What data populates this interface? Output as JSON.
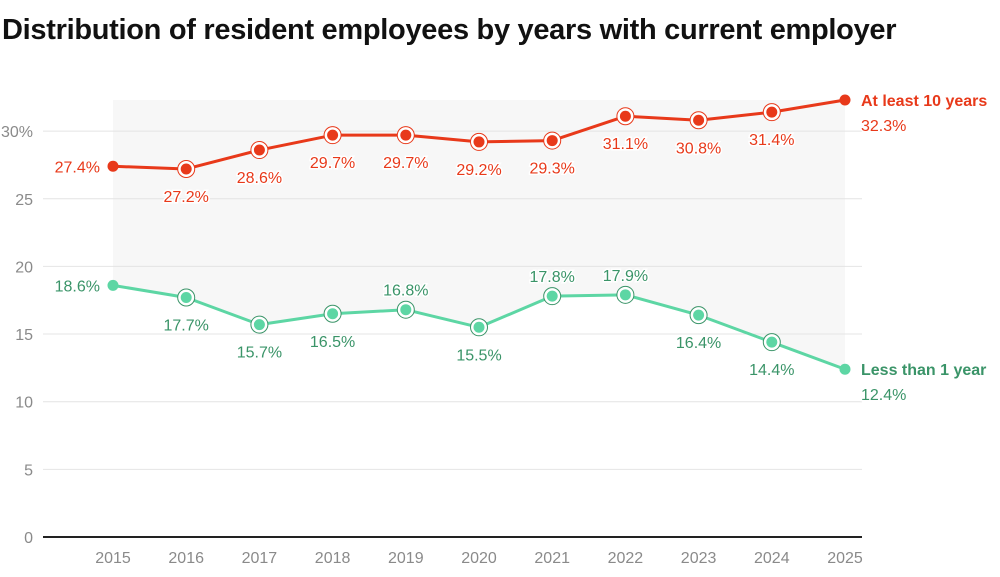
{
  "chart_data": {
    "type": "line",
    "title": "Distribution of resident employees by years with current employer",
    "xlabel": "",
    "ylabel": "",
    "x": [
      "2015",
      "2016",
      "2017",
      "2018",
      "2019",
      "2020",
      "2021",
      "2022",
      "2023",
      "2024",
      "2025"
    ],
    "ylim": [
      0,
      30
    ],
    "yticks": [
      0,
      5,
      10,
      15,
      20,
      25,
      30
    ],
    "ytick_labels": [
      "0",
      "5",
      "10",
      "15",
      "20",
      "25",
      "30%"
    ],
    "grid": true,
    "shade_between_series": true,
    "series": [
      {
        "name": "At least 10 years",
        "color": "#e8391a",
        "label_color": "#e8391a",
        "values": [
          27.4,
          27.2,
          28.6,
          29.7,
          29.7,
          29.2,
          29.3,
          31.1,
          30.8,
          31.4,
          32.3
        ],
        "labels": [
          "27.4%",
          "27.2%",
          "28.6%",
          "29.7%",
          "29.7%",
          "29.2%",
          "29.3%",
          "31.1%",
          "30.8%",
          "31.4%",
          "32.3%"
        ]
      },
      {
        "name": "Less than 1 year",
        "color": "#5dd6a4",
        "label_color": "#3a9468",
        "values": [
          18.6,
          17.7,
          15.7,
          16.5,
          16.8,
          15.5,
          17.8,
          17.9,
          16.4,
          14.4,
          12.4
        ],
        "labels": [
          "18.6%",
          "17.7%",
          "15.7%",
          "16.5%",
          "16.8%",
          "15.5%",
          "17.8%",
          "17.9%",
          "16.4%",
          "14.4%",
          "12.4%"
        ]
      }
    ]
  }
}
